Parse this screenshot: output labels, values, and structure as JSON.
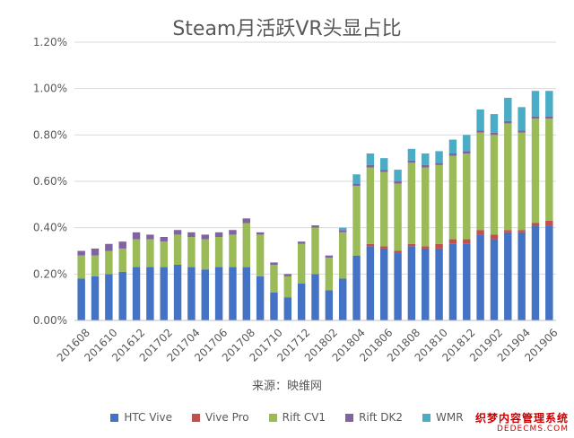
{
  "chart_data": {
    "type": "bar",
    "stacked": true,
    "title": "Steam月活跃VR头显占比",
    "source": "来源：映维网",
    "ylim": [
      0,
      1.2
    ],
    "yticks": [
      "0.00%",
      "0.20%",
      "0.40%",
      "0.60%",
      "0.80%",
      "1.00%",
      "1.20%"
    ],
    "ytick_values": [
      0,
      0.2,
      0.4,
      0.6,
      0.8,
      1.0,
      1.2
    ],
    "grid": true,
    "legend_position": "bottom",
    "categories": [
      "201608",
      "201609",
      "201610",
      "201611",
      "201612",
      "201701",
      "201702",
      "201703",
      "201704",
      "201705",
      "201706",
      "201707",
      "201708",
      "201709",
      "201710",
      "201711",
      "201712",
      "201801",
      "201802",
      "201803",
      "201804",
      "201805",
      "201806",
      "201807",
      "201808",
      "201809",
      "201810",
      "201811",
      "201812",
      "201901",
      "201902",
      "201903",
      "201904",
      "201905",
      "201906"
    ],
    "visible_x_labels": [
      "201608",
      "201610",
      "201612",
      "201702",
      "201704",
      "201706",
      "201708",
      "201710",
      "201712",
      "201802",
      "201804",
      "201806",
      "201808",
      "201810",
      "201812",
      "201902",
      "201904",
      "201906"
    ],
    "series": [
      {
        "name": "HTC Vive",
        "color": "#4472c4",
        "values": [
          0.18,
          0.19,
          0.2,
          0.21,
          0.23,
          0.23,
          0.23,
          0.24,
          0.23,
          0.22,
          0.23,
          0.23,
          0.23,
          0.19,
          0.12,
          0.1,
          0.16,
          0.2,
          0.13,
          0.18,
          0.28,
          0.32,
          0.31,
          0.29,
          0.32,
          0.31,
          0.31,
          0.33,
          0.33,
          0.37,
          0.35,
          0.38,
          0.38,
          0.41,
          0.41
        ]
      },
      {
        "name": "Vive Pro",
        "color": "#c0504d",
        "values": [
          0,
          0,
          0,
          0,
          0,
          0,
          0,
          0,
          0,
          0,
          0,
          0,
          0,
          0,
          0,
          0,
          0,
          0,
          0,
          0,
          0,
          0.01,
          0.01,
          0.01,
          0.01,
          0.01,
          0.02,
          0.02,
          0.02,
          0.02,
          0.02,
          0.01,
          0.01,
          0.01,
          0.02
        ]
      },
      {
        "name": "Rift CV1",
        "color": "#9bbb59",
        "values": [
          0.1,
          0.09,
          0.1,
          0.1,
          0.12,
          0.12,
          0.11,
          0.13,
          0.13,
          0.13,
          0.13,
          0.14,
          0.19,
          0.18,
          0.12,
          0.09,
          0.17,
          0.2,
          0.14,
          0.2,
          0.3,
          0.33,
          0.32,
          0.29,
          0.35,
          0.34,
          0.34,
          0.36,
          0.37,
          0.42,
          0.43,
          0.46,
          0.42,
          0.45,
          0.44
        ]
      },
      {
        "name": "Rift DK2",
        "color": "#8064a2",
        "values": [
          0.02,
          0.03,
          0.03,
          0.03,
          0.03,
          0.02,
          0.02,
          0.02,
          0.02,
          0.02,
          0.02,
          0.02,
          0.02,
          0.01,
          0.01,
          0.01,
          0.01,
          0.01,
          0.01,
          0.01,
          0.01,
          0.01,
          0.01,
          0.01,
          0.01,
          0.01,
          0.01,
          0.01,
          0.01,
          0.01,
          0.01,
          0.01,
          0.01,
          0.01,
          0.01
        ]
      },
      {
        "name": "WMR",
        "color": "#4bacc6",
        "values": [
          0,
          0,
          0,
          0,
          0,
          0,
          0,
          0,
          0,
          0,
          0,
          0,
          0,
          0,
          0,
          0,
          0,
          0,
          0,
          0.01,
          0.04,
          0.05,
          0.05,
          0.05,
          0.05,
          0.05,
          0.05,
          0.06,
          0.07,
          0.09,
          0.08,
          0.1,
          0.1,
          0.11,
          0.11
        ]
      }
    ]
  },
  "watermark": {
    "line1": "织梦内容管理系统",
    "line2": "DEDECMS.COM"
  }
}
